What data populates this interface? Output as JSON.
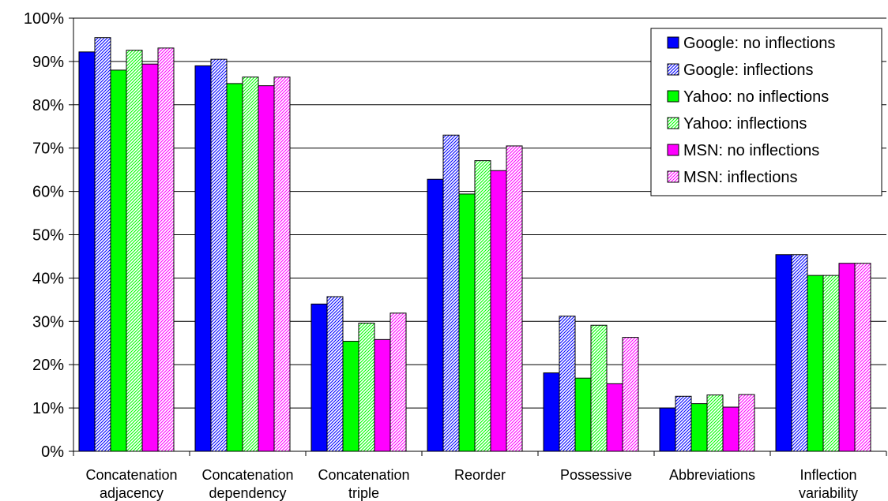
{
  "chart_data": {
    "type": "bar",
    "title": "",
    "xlabel": "",
    "ylabel": "",
    "ylim": [
      0,
      100
    ],
    "y_unit": "%",
    "yticks": [
      "0%",
      "10%",
      "20%",
      "30%",
      "40%",
      "50%",
      "60%",
      "70%",
      "80%",
      "90%",
      "100%"
    ],
    "grid": true,
    "legend_position": "top-right",
    "categories": [
      [
        "Concatenation",
        "adjacency"
      ],
      [
        "Concatenation",
        "dependency"
      ],
      [
        "Concatenation",
        "triple"
      ],
      [
        "Reorder"
      ],
      [
        "Possessive"
      ],
      [
        "Abbreviations"
      ],
      [
        "Inflection",
        "variability"
      ]
    ],
    "series": [
      {
        "name": "Google: no inflections",
        "color": "#0000ff",
        "pattern": "solid",
        "values": [
          92.2,
          89.0,
          34.0,
          62.8,
          18.1,
          10.0,
          45.4
        ]
      },
      {
        "name": "Google: inflections",
        "color": "#0000ff",
        "pattern": "hatched",
        "values": [
          95.5,
          90.5,
          35.7,
          73.0,
          31.2,
          12.7,
          45.4
        ]
      },
      {
        "name": "Yahoo: no inflections",
        "color": "#00ff00",
        "pattern": "solid",
        "values": [
          88.0,
          84.9,
          25.4,
          59.4,
          16.9,
          11.0,
          40.6
        ]
      },
      {
        "name": "Yahoo: inflections",
        "color": "#00ff00",
        "pattern": "hatched",
        "values": [
          92.6,
          86.4,
          29.6,
          67.1,
          29.1,
          13.0,
          40.6
        ]
      },
      {
        "name": "MSN: no inflections",
        "color": "#ff00ff",
        "pattern": "solid",
        "values": [
          89.4,
          84.4,
          25.8,
          64.8,
          15.6,
          10.2,
          43.4
        ]
      },
      {
        "name": "MSN: inflections",
        "color": "#ff00ff",
        "pattern": "hatched",
        "values": [
          93.1,
          86.4,
          31.9,
          70.5,
          26.3,
          13.1,
          43.4
        ]
      }
    ]
  }
}
